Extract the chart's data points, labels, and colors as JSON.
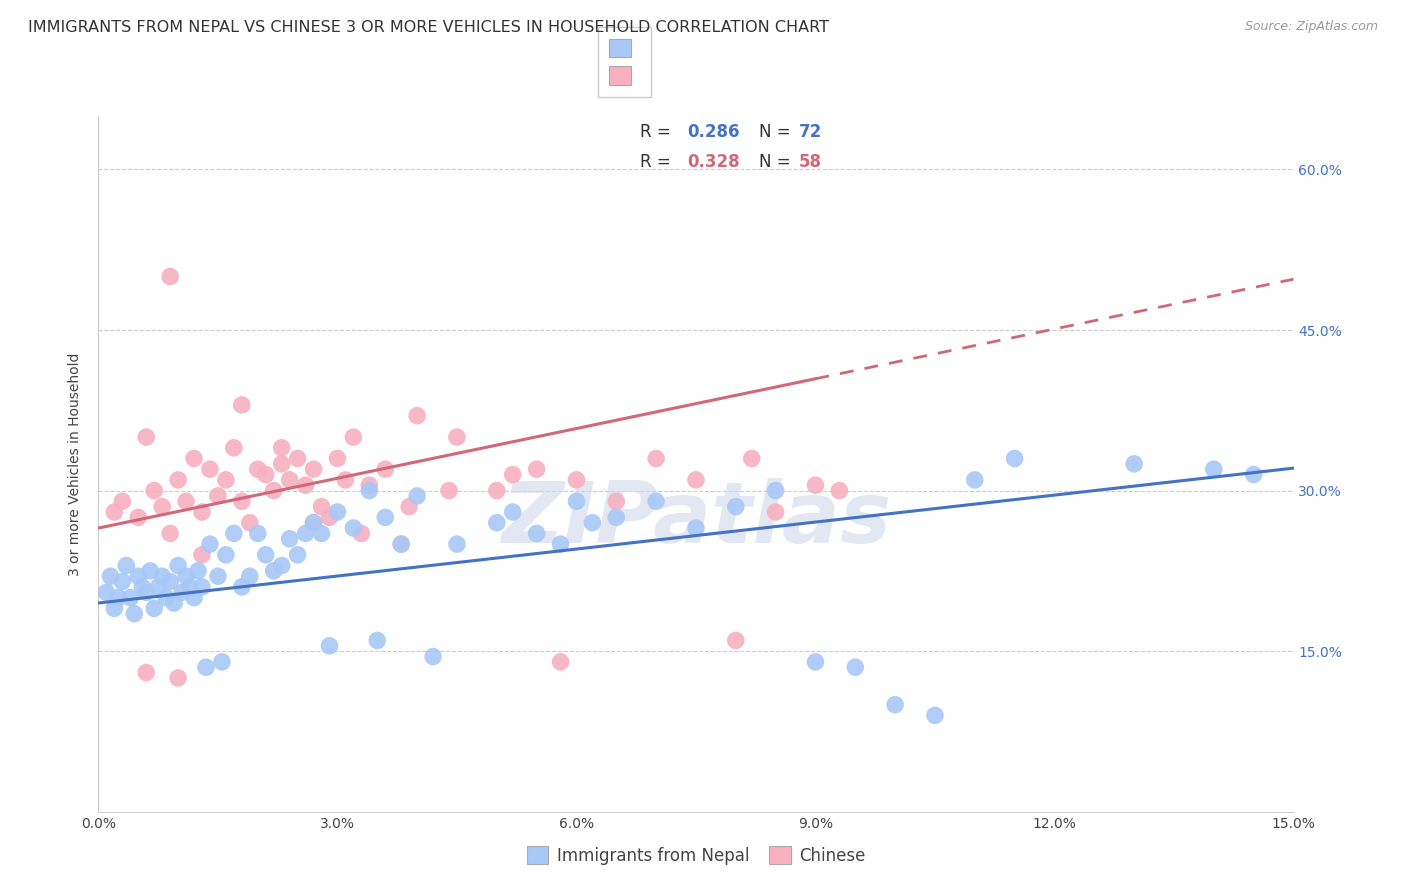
{
  "title": "IMMIGRANTS FROM NEPAL VS CHINESE 3 OR MORE VEHICLES IN HOUSEHOLD CORRELATION CHART",
  "source": "Source: ZipAtlas.com",
  "ylabel": "3 or more Vehicles in Household",
  "xmin": 0.0,
  "xmax": 15.0,
  "ymin": 0.0,
  "ymax": 65.0,
  "xticks": [
    0.0,
    3.0,
    6.0,
    9.0,
    12.0,
    15.0
  ],
  "yticks": [
    15.0,
    30.0,
    45.0,
    60.0
  ],
  "x_tick_labels": [
    "0.0%",
    "3.0%",
    "6.0%",
    "9.0%",
    "12.0%",
    "15.0%"
  ],
  "y_tick_labels": [
    "15.0%",
    "30.0%",
    "45.0%",
    "60.0%"
  ],
  "nepal_R": 0.286,
  "nepal_N": 72,
  "chinese_R": 0.328,
  "chinese_N": 58,
  "nepal_color": "#a8c8f8",
  "nepal_color_dark": "#4472c4",
  "chinese_color": "#f8b0c0",
  "chinese_color_dark": "#d06878",
  "watermark": "ZIPatlas",
  "background_color": "#ffffff",
  "grid_color": "#cccccc",
  "title_fontsize": 11.5,
  "axis_label_fontsize": 10,
  "tick_fontsize": 10,
  "legend_fontsize": 12,
  "nepal_line_b": 19.5,
  "nepal_line_m": 0.84,
  "chinese_line_b": 26.5,
  "chinese_line_m": 1.55,
  "chinese_solid_end": 9.0,
  "nepal_scatter_x": [
    0.1,
    0.15,
    0.2,
    0.25,
    0.3,
    0.35,
    0.4,
    0.45,
    0.5,
    0.55,
    0.6,
    0.65,
    0.7,
    0.75,
    0.8,
    0.85,
    0.9,
    0.95,
    1.0,
    1.05,
    1.1,
    1.15,
    1.2,
    1.25,
    1.3,
    1.4,
    1.5,
    1.6,
    1.7,
    1.8,
    1.9,
    2.0,
    2.1,
    2.2,
    2.3,
    2.4,
    2.5,
    2.6,
    2.7,
    2.8,
    3.0,
    3.2,
    3.4,
    3.6,
    3.8,
    4.0,
    4.5,
    5.0,
    5.5,
    6.0,
    6.5,
    7.0,
    7.5,
    8.0,
    8.5,
    9.0,
    9.5,
    10.0,
    10.5,
    11.0,
    11.5,
    13.0,
    14.0,
    14.5,
    5.2,
    5.8,
    6.2,
    4.2,
    3.5,
    2.9,
    1.35,
    1.55
  ],
  "nepal_scatter_y": [
    20.5,
    22.0,
    19.0,
    20.0,
    21.5,
    23.0,
    20.0,
    18.5,
    22.0,
    21.0,
    20.5,
    22.5,
    19.0,
    21.0,
    22.0,
    20.0,
    21.5,
    19.5,
    23.0,
    20.5,
    22.0,
    21.0,
    20.0,
    22.5,
    21.0,
    25.0,
    22.0,
    24.0,
    26.0,
    21.0,
    22.0,
    26.0,
    24.0,
    22.5,
    23.0,
    25.5,
    24.0,
    26.0,
    27.0,
    26.0,
    28.0,
    26.5,
    30.0,
    27.5,
    25.0,
    29.5,
    25.0,
    27.0,
    26.0,
    29.0,
    27.5,
    29.0,
    26.5,
    28.5,
    30.0,
    14.0,
    13.5,
    10.0,
    9.0,
    31.0,
    33.0,
    32.5,
    32.0,
    31.5,
    28.0,
    25.0,
    27.0,
    14.5,
    16.0,
    15.5,
    13.5,
    14.0
  ],
  "chinese_scatter_x": [
    0.2,
    0.3,
    0.5,
    0.6,
    0.7,
    0.8,
    0.9,
    1.0,
    1.1,
    1.2,
    1.3,
    1.4,
    1.5,
    1.6,
    1.7,
    1.8,
    1.9,
    2.0,
    2.1,
    2.2,
    2.3,
    2.4,
    2.5,
    2.6,
    2.7,
    2.8,
    2.9,
    3.0,
    3.1,
    3.2,
    3.4,
    3.6,
    3.8,
    4.0,
    4.5,
    5.0,
    5.5,
    6.0,
    7.0,
    8.0,
    8.5,
    9.0,
    0.9,
    1.3,
    1.8,
    2.3,
    2.7,
    3.3,
    3.9,
    4.4,
    5.2,
    5.8,
    6.5,
    7.5,
    8.2,
    9.3,
    0.6,
    1.0
  ],
  "chinese_scatter_y": [
    28.0,
    29.0,
    27.5,
    35.0,
    30.0,
    28.5,
    26.0,
    31.0,
    29.0,
    33.0,
    28.0,
    32.0,
    29.5,
    31.0,
    34.0,
    29.0,
    27.0,
    32.0,
    31.5,
    30.0,
    32.5,
    31.0,
    33.0,
    30.5,
    32.0,
    28.5,
    27.5,
    33.0,
    31.0,
    35.0,
    30.5,
    32.0,
    25.0,
    37.0,
    35.0,
    30.0,
    32.0,
    31.0,
    33.0,
    16.0,
    28.0,
    30.5,
    50.0,
    24.0,
    38.0,
    34.0,
    27.0,
    26.0,
    28.5,
    30.0,
    31.5,
    14.0,
    29.0,
    31.0,
    33.0,
    30.0,
    13.0,
    12.5
  ]
}
